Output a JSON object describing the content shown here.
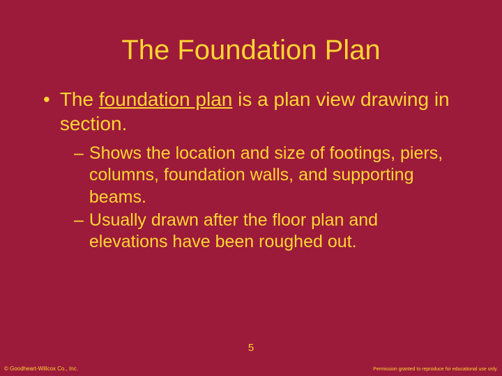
{
  "colors": {
    "background": "#9c1a3a",
    "text": "#ffd633"
  },
  "typography": {
    "title_fontsize": 40,
    "body_fontsize": 28,
    "sub_fontsize": 25,
    "footer_small_fontsize": 8,
    "font_family": "Arial"
  },
  "title": "The Foundation Plan",
  "main_bullet": {
    "prefix": "The ",
    "underlined": "foundation plan",
    "suffix": " is a plan view drawing in section."
  },
  "sub_bullets": [
    "Shows the location and size of footings, piers, columns, foundation walls, and supporting beams.",
    "Usually drawn after the floor plan and elevations have been roughed out."
  ],
  "page_number": "5",
  "copyright": "© Goodheart-Willcox Co., Inc.",
  "permission": "Permission granted to reproduce for educational use only."
}
